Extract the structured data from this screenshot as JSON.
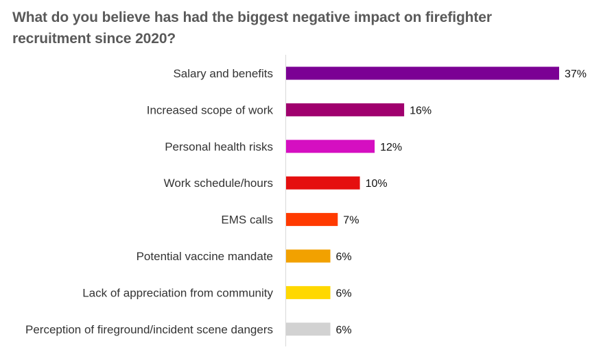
{
  "title": "What do you believe has had the biggest negative impact on firefighter recruitment since 2020?",
  "chart_data": {
    "type": "bar",
    "orientation": "horizontal",
    "title": "What do you believe has had the biggest negative impact on firefighter recruitment since 2020?",
    "xlabel": "",
    "ylabel": "",
    "categories": [
      "Salary and benefits",
      "Increased scope of work",
      "Personal health risks",
      "Work schedule/hours",
      "EMS calls",
      "Potential vaccine mandate",
      "Lack of appreciation from community",
      "Perception of fireground/incident scene dangers"
    ],
    "values": [
      37,
      16,
      12,
      10,
      7,
      6,
      6,
      6
    ],
    "value_labels": [
      "37%",
      "16%",
      "12%",
      "10%",
      "7%",
      "6%",
      "6%",
      "6%"
    ],
    "colors": [
      "#7B0094",
      "#A0006E",
      "#D50FC1",
      "#E50F0F",
      "#FF3A00",
      "#F2A100",
      "#FFD800",
      "#D2D2D2"
    ],
    "xlim": [
      0,
      37
    ],
    "grid": false,
    "legend": "none"
  }
}
